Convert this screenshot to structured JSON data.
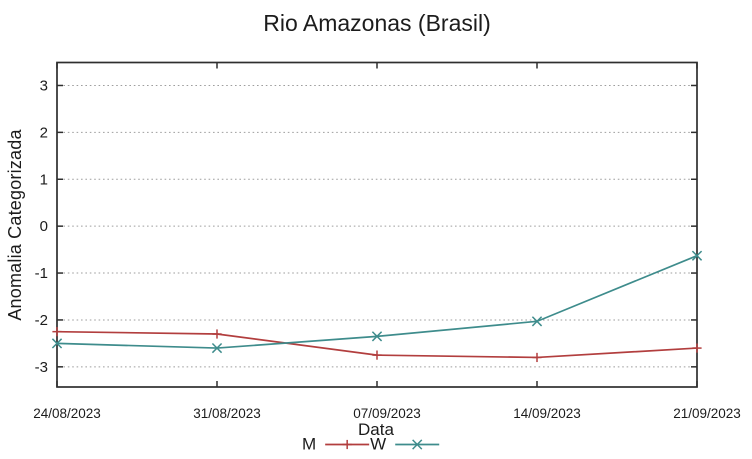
{
  "chart_data": {
    "type": "line",
    "title": "Rio Amazonas (Brasil)",
    "xlabel": "Data",
    "ylabel": "Anomalia Categorizada",
    "categories": [
      "24/08/2023",
      "31/08/2023",
      "07/09/2023",
      "14/09/2023",
      "21/09/2023"
    ],
    "x_days": [
      0,
      7,
      14,
      21,
      28
    ],
    "xlim_days": [
      0,
      28
    ],
    "ylim": [
      -3.43,
      3.49
    ],
    "yticks": [
      3,
      2,
      1,
      0,
      -1,
      -2,
      -3
    ],
    "grid": "horizontal-dotted",
    "legend_position": "below-plot-center",
    "axis_color": "#2e2e2e",
    "grid_color": "#9e9e9e",
    "series": [
      {
        "name": "M",
        "color": "#b23e3e",
        "marker": "plus",
        "values": [
          -2.25,
          -2.3,
          -2.75,
          -2.8,
          -2.6
        ]
      },
      {
        "name": "W",
        "color": "#3e8c8c",
        "marker": "cross",
        "values": [
          -2.5,
          -2.6,
          -2.35,
          -2.03,
          -0.63
        ]
      }
    ]
  }
}
